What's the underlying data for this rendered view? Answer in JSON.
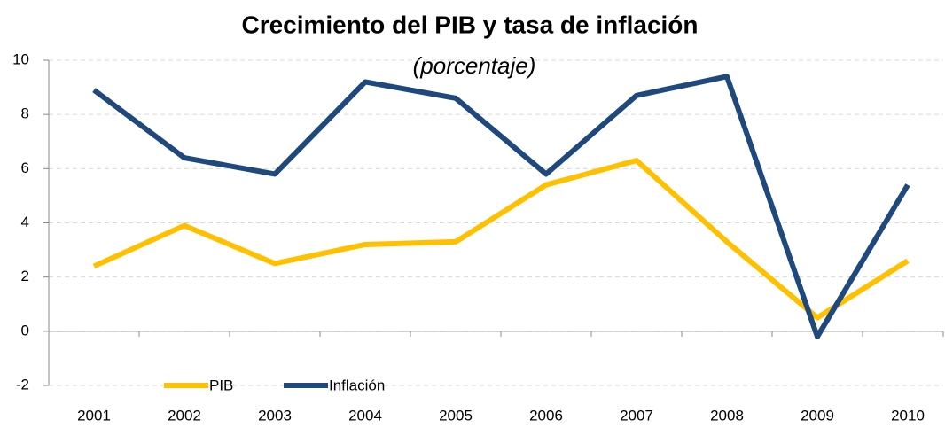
{
  "chart_data": {
    "type": "line",
    "title": "Crecimiento del PIB y tasa de inflación",
    "subtitle": "(porcentaje)",
    "categories": [
      "2001",
      "2002",
      "2003",
      "2004",
      "2005",
      "2006",
      "2007",
      "2008",
      "2009",
      "2010"
    ],
    "series": [
      {
        "name": "PIB",
        "color": "#ffc000",
        "values": [
          2.4,
          3.9,
          2.5,
          3.2,
          3.3,
          5.4,
          6.3,
          3.3,
          0.5,
          2.6
        ]
      },
      {
        "name": "Inflación",
        "color": "#1f497d",
        "values": [
          8.9,
          6.4,
          5.8,
          9.2,
          8.6,
          5.8,
          8.7,
          9.4,
          -0.2,
          5.4
        ]
      }
    ],
    "ylim": [
      -2,
      10
    ],
    "yticks": [
      -2,
      0,
      2,
      4,
      6,
      8,
      10
    ],
    "grid": true,
    "legend": "bottom"
  }
}
